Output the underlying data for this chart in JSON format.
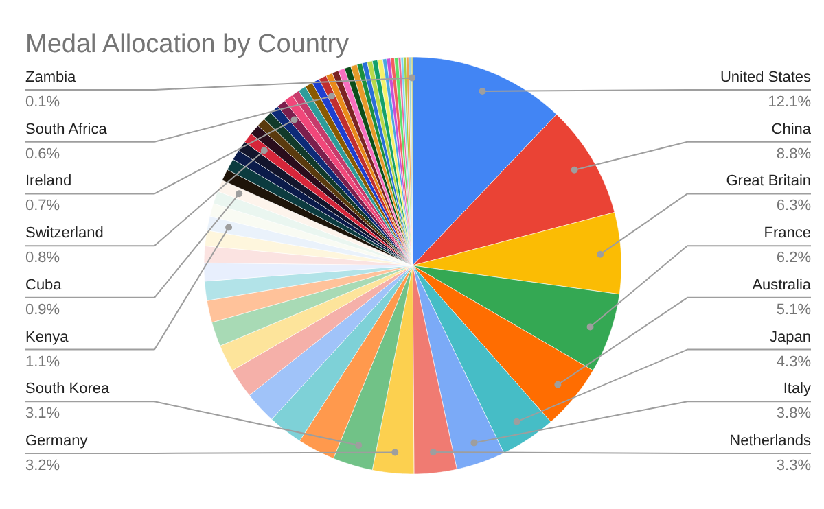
{
  "chart_data": {
    "type": "pie",
    "title": "Medal Allocation by Country",
    "categories": [
      "United States",
      "China",
      "Great Britain",
      "France",
      "Australia",
      "Japan",
      "Italy",
      "Netherlands",
      "Germany",
      "South Korea",
      null,
      null,
      null,
      null,
      null,
      null,
      null,
      null,
      null,
      null,
      null,
      "Kenya",
      null,
      null,
      "Cuba",
      null,
      null,
      null,
      null,
      "Switzerland",
      null,
      null,
      null,
      null,
      "Ireland",
      null,
      null,
      null,
      null,
      null,
      "South Africa",
      null,
      null,
      null,
      null,
      null,
      null,
      null,
      null,
      null,
      null,
      null,
      null,
      null,
      null,
      null,
      null,
      null,
      null,
      null,
      "Zambia"
    ],
    "values": [
      12.1,
      8.8,
      6.3,
      6.2,
      5.1,
      4.3,
      3.8,
      3.3,
      3.2,
      3.1,
      2.9,
      2.7,
      2.5,
      2.3,
      2.1,
      1.9,
      1.7,
      1.5,
      1.4,
      1.3,
      1.2,
      1.1,
      1.0,
      1.0,
      0.9,
      0.9,
      0.9,
      0.8,
      0.8,
      0.8,
      0.8,
      0.7,
      0.7,
      0.7,
      0.7,
      0.7,
      0.6,
      0.6,
      0.6,
      0.6,
      0.6,
      0.5,
      0.5,
      0.5,
      0.5,
      0.5,
      0.4,
      0.4,
      0.4,
      0.4,
      0.4,
      0.3,
      0.3,
      0.3,
      0.3,
      0.2,
      0.2,
      0.2,
      0.2,
      0.2,
      0.1
    ],
    "value_labels": [
      "12.1%",
      "8.8%",
      "6.3%",
      "6.2%",
      "5.1%",
      "4.3%",
      "3.8%",
      "3.3%",
      "3.2%",
      "3.1%",
      null,
      null,
      null,
      null,
      null,
      null,
      null,
      null,
      null,
      null,
      null,
      "1.1%",
      null,
      null,
      "0.9%",
      null,
      null,
      null,
      null,
      "0.8%",
      null,
      null,
      null,
      null,
      "0.7%",
      null,
      null,
      null,
      null,
      null,
      "0.6%",
      null,
      null,
      null,
      null,
      null,
      null,
      null,
      null,
      null,
      null,
      null,
      null,
      null,
      null,
      null,
      null,
      null,
      null,
      null,
      "0.1%"
    ],
    "colors": [
      "#4285f4",
      "#ea4335",
      "#fbbc04",
      "#34a853",
      "#ff6d01",
      "#46bdc6",
      "#7baaf7",
      "#f07b72",
      "#fcd04f",
      "#71c287",
      "#ff994d",
      "#7ed1d7",
      "#a0c3f9",
      "#f5b0a9",
      "#fde49b",
      "#a8dab5",
      "#ffc29a",
      "#b2e3e8",
      "#e8effd",
      "#fbe3e1",
      "#fef6dd",
      "#eaf2fb",
      "#f9fbf3",
      "#eaf6f0",
      "#fdf4ec",
      "#1e1409",
      "#0c3b3f",
      "#0b1b4a",
      "#13152c",
      "#d6263a",
      "#2a0d1c",
      "#5a3a0e",
      "#123a2a",
      "#0d2b78",
      "#7b1f4d",
      "#f0477a",
      "#c73b6b",
      "#2d9c9a",
      "#8a5a00",
      "#1d3fd1",
      "#c12f2f",
      "#e98a1a",
      "#7a2323",
      "#f76fbf",
      "#0b4d1a",
      "#e89a2a",
      "#1c8f3e",
      "#2a6ed9",
      "#b8d94a",
      "#14a06b",
      "#f5f26a",
      "#4aa7e0",
      "#c850d8",
      "#f25e5e",
      "#5ee06a",
      "#e86a9a",
      "#7ad8f0",
      "#aacc44",
      "#f0a050",
      "#9ad0e0",
      "#b0c060"
    ]
  }
}
